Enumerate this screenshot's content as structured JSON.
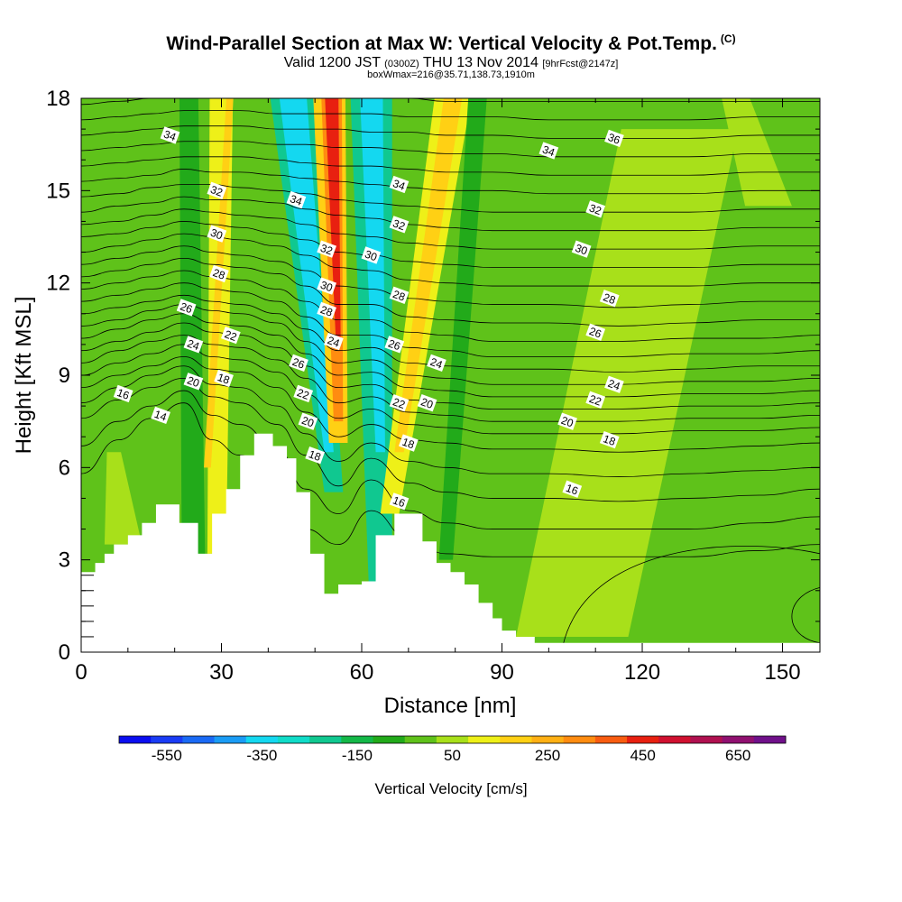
{
  "title": {
    "main": "Wind-Parallel Section at Max W: Vertical Velocity & Pot.Temp.",
    "copyright": "(C)",
    "valid_prefix": "Valid 1200 JST",
    "valid_utc": "(0300Z)",
    "valid_date": "THU 13 Nov 2014",
    "forecast": "[9hrFcst@2147z]",
    "box_info": "boxWmax=216@35.71,138.73,1910m"
  },
  "colors": {
    "terrain": "#ffffff",
    "background_field": "#5fc21a",
    "colorbar": [
      "#0a0ef0",
      "#1a3cf5",
      "#1a6af5",
      "#1a9cf5",
      "#14d8f0",
      "#10dcc8",
      "#10c890",
      "#14b848",
      "#22aa1a",
      "#5fc21a",
      "#a8e01a",
      "#eef018",
      "#ffd014",
      "#ffb014",
      "#ff8c10",
      "#f85c10",
      "#e82010",
      "#d01030",
      "#b01050",
      "#901070",
      "#70108a"
    ]
  },
  "chart_data": {
    "type": "heatmap",
    "xlabel": "Distance [nm]",
    "ylabel": "Height [Kft MSL]",
    "xlim": [
      0,
      158
    ],
    "ylim": [
      0,
      18
    ],
    "x_ticks": [
      "0",
      "30",
      "60",
      "90",
      "120",
      "150"
    ],
    "y_ticks": [
      "0",
      "3",
      "6",
      "9",
      "12",
      "15",
      "18"
    ],
    "x_tick_values": [
      0,
      30,
      60,
      90,
      120,
      150
    ],
    "y_tick_values": [
      0,
      3,
      6,
      9,
      12,
      15,
      18
    ],
    "colorbar": {
      "label": "Vertical Velocity [cm/s]",
      "tick_labels": [
        "-550",
        "-350",
        "-150",
        "50",
        "250",
        "450",
        "650"
      ],
      "tick_values": [
        -550,
        -350,
        -150,
        50,
        250,
        450,
        650
      ],
      "range": [
        -650,
        750
      ]
    },
    "bands": [
      {
        "x_top": 23,
        "x_bot": 24,
        "w_top": 4,
        "w_bot": 5,
        "color": "#22aa1a",
        "ybot": 3.2
      },
      {
        "x_top": 30,
        "x_bot": 29,
        "w_top": 5,
        "w_bot": 4,
        "color": "#eef018",
        "ybot": 3.2
      },
      {
        "x_top": 32,
        "x_bot": 27,
        "w_top": 1.5,
        "w_bot": 1.5,
        "color": "#ffd014",
        "ybot": 6
      },
      {
        "x_top": 45,
        "x_bot": 54,
        "w_top": 10,
        "w_bot": 4,
        "color": "#10c890",
        "ybot": 5.2
      },
      {
        "x_top": 45,
        "x_bot": 53,
        "w_top": 6,
        "w_bot": 2,
        "color": "#14d8f0",
        "ybot": 6.5
      },
      {
        "x_top": 53,
        "x_bot": 55,
        "w_top": 7,
        "w_bot": 4,
        "color": "#ffd014",
        "ybot": 6.8
      },
      {
        "x_top": 53.5,
        "x_bot": 55,
        "w_top": 4.5,
        "w_bot": 2,
        "color": "#ff8c10",
        "ybot": 7.5
      },
      {
        "x_top": 53.5,
        "x_bot": 55,
        "w_top": 3,
        "w_bot": 1,
        "color": "#e82010",
        "ybot": 10
      },
      {
        "x_top": 62,
        "x_bot": 64,
        "w_top": 9,
        "w_bot": 5,
        "color": "#10c890",
        "ybot": 2.2
      },
      {
        "x_top": 62,
        "x_bot": 64,
        "w_top": 5,
        "w_bot": 2,
        "color": "#14d8f0",
        "ybot": 6.5
      },
      {
        "x_top": 80,
        "x_bot": 66,
        "w_top": 8,
        "w_bot": 4,
        "color": "#eef018",
        "ybot": 4.5
      },
      {
        "x_top": 80,
        "x_bot": 68,
        "w_top": 4,
        "w_bot": 2,
        "color": "#ffd014",
        "ybot": 6.5
      },
      {
        "x_top": 85,
        "x_bot": 78,
        "w_top": 4,
        "w_bot": 3,
        "color": "#22aa1a",
        "ybot": 3
      }
    ],
    "light_regions": [
      {
        "x_top": 128,
        "x_bot": 105,
        "w_top": 25,
        "w_bot": 24,
        "ytop": 17,
        "ybot": 0.5
      },
      {
        "x_top": 140,
        "x_bot": 147,
        "w_top": 6,
        "w_bot": 10,
        "ytop": 18,
        "ybot": 14.5
      },
      {
        "x_top": 7,
        "x_bot": 9,
        "w_top": 3,
        "w_bot": 8,
        "ytop": 6.5,
        "ybot": 3.5
      }
    ],
    "terrain_height_kft": [
      [
        0,
        2.6
      ],
      [
        3,
        2.9
      ],
      [
        5,
        3.2
      ],
      [
        7,
        3.5
      ],
      [
        10,
        3.8
      ],
      [
        13,
        4.2
      ],
      [
        16,
        4.8
      ],
      [
        21,
        4.2
      ],
      [
        25,
        3.2
      ],
      [
        28,
        4.5
      ],
      [
        31,
        5.3
      ],
      [
        34,
        6.4
      ],
      [
        37,
        7.1
      ],
      [
        41,
        6.7
      ],
      [
        44,
        6.3
      ],
      [
        46,
        5.2
      ],
      [
        49,
        3.2
      ],
      [
        52,
        1.9
      ],
      [
        55,
        2.2
      ],
      [
        60,
        2.3
      ],
      [
        63,
        3.8
      ],
      [
        67,
        4.5
      ],
      [
        73,
        3.6
      ],
      [
        76,
        2.9
      ],
      [
        79,
        2.6
      ],
      [
        82,
        2.2
      ],
      [
        85,
        1.6
      ],
      [
        88,
        1.1
      ],
      [
        90,
        0.7
      ],
      [
        93,
        0.5
      ],
      [
        97,
        0.3
      ],
      [
        100,
        0.3
      ]
    ],
    "terrain_cutoff_x": 103,
    "isentropes": [
      {
        "theta": 14,
        "y": [
          5.8,
          6.9,
          7.6,
          8.1,
          6.9,
          6.4,
          5.5,
          4.0,
          3.5,
          4.6,
          3.7,
          3.2,
          3.1,
          3.1,
          3.1,
          3.1,
          3.3,
          3.5
        ]
      },
      {
        "theta": 15,
        "y": [
          6.7,
          7.5,
          8.0,
          8.5,
          7.7,
          7.4,
          6.6,
          5.3,
          4.5,
          5.6,
          4.6,
          4.2,
          4.0,
          4.0,
          4.0,
          4.0,
          4.2,
          4.4
        ]
      },
      {
        "theta": 16,
        "y": [
          7.6,
          8.2,
          8.6,
          8.9,
          8.3,
          8.1,
          7.4,
          6.4,
          5.4,
          6.3,
          5.5,
          5.2,
          5.0,
          5.0,
          4.9,
          5.0,
          5.1,
          5.3
        ]
      },
      {
        "theta": 17,
        "y": [
          8.1,
          8.6,
          9.0,
          9.3,
          8.7,
          8.6,
          8.0,
          7.1,
          6.2,
          6.8,
          6.2,
          6.0,
          5.8,
          5.8,
          5.7,
          5.8,
          5.9,
          6.0
        ]
      },
      {
        "theta": 18,
        "y": [
          8.6,
          9.0,
          9.3,
          9.6,
          9.2,
          9.1,
          8.6,
          7.8,
          7.0,
          7.4,
          6.9,
          6.8,
          6.6,
          6.6,
          6.5,
          6.6,
          6.7,
          6.8
        ]
      },
      {
        "theta": 19,
        "y": [
          9.0,
          9.4,
          9.7,
          10.0,
          9.6,
          9.5,
          9.1,
          8.4,
          7.6,
          7.9,
          7.4,
          7.3,
          7.1,
          7.1,
          7.1,
          7.2,
          7.2,
          7.3
        ]
      },
      {
        "theta": 20,
        "y": [
          9.4,
          9.8,
          10.1,
          10.3,
          10.0,
          9.9,
          9.5,
          8.9,
          8.1,
          8.3,
          7.8,
          7.7,
          7.5,
          7.5,
          7.5,
          7.6,
          7.6,
          7.7
        ]
      },
      {
        "theta": 21,
        "y": [
          9.8,
          10.1,
          10.4,
          10.7,
          10.4,
          10.3,
          9.9,
          9.3,
          8.6,
          8.7,
          8.2,
          8.1,
          7.9,
          7.9,
          7.9,
          8.0,
          8.0,
          8.1
        ]
      },
      {
        "theta": 22,
        "y": [
          10.2,
          10.5,
          10.8,
          11.0,
          10.7,
          10.6,
          10.3,
          9.7,
          9.0,
          9.1,
          8.6,
          8.5,
          8.3,
          8.3,
          8.3,
          8.4,
          8.4,
          8.5
        ]
      },
      {
        "theta": 23,
        "y": [
          10.6,
          10.8,
          11.1,
          11.3,
          11.1,
          11.0,
          10.7,
          10.1,
          9.4,
          9.5,
          9.0,
          8.9,
          8.7,
          8.7,
          8.7,
          8.8,
          8.8,
          8.9
        ]
      },
      {
        "theta": 24,
        "y": [
          11.0,
          11.2,
          11.4,
          11.6,
          11.4,
          11.3,
          11.0,
          10.5,
          9.8,
          9.9,
          9.4,
          9.3,
          9.2,
          9.2,
          9.1,
          9.2,
          9.3,
          9.3
        ]
      },
      {
        "theta": 25,
        "y": [
          11.4,
          11.6,
          11.8,
          12.0,
          11.8,
          11.7,
          11.4,
          10.9,
          10.3,
          10.3,
          9.9,
          9.8,
          9.6,
          9.6,
          9.6,
          9.7,
          9.7,
          9.8
        ]
      },
      {
        "theta": 26,
        "y": [
          11.8,
          12.0,
          12.2,
          12.4,
          12.2,
          12.1,
          11.8,
          11.4,
          10.8,
          10.8,
          10.4,
          10.3,
          10.1,
          10.1,
          10.1,
          10.2,
          10.2,
          10.3
        ]
      },
      {
        "theta": 27,
        "y": [
          12.2,
          12.4,
          12.6,
          12.8,
          12.6,
          12.5,
          12.3,
          11.9,
          11.3,
          11.3,
          10.9,
          10.8,
          10.7,
          10.7,
          10.6,
          10.7,
          10.8,
          10.8
        ]
      },
      {
        "theta": 28,
        "y": [
          12.6,
          12.8,
          13.0,
          13.2,
          13.0,
          12.9,
          12.7,
          12.4,
          11.9,
          11.8,
          11.5,
          11.4,
          11.3,
          11.3,
          11.2,
          11.3,
          11.4,
          11.4
        ]
      },
      {
        "theta": 29,
        "y": [
          13.0,
          13.2,
          13.4,
          13.6,
          13.5,
          13.4,
          13.2,
          12.9,
          12.5,
          12.4,
          12.1,
          12.0,
          11.9,
          11.9,
          11.9,
          11.9,
          12.0,
          12.0
        ]
      },
      {
        "theta": 30,
        "y": [
          13.5,
          13.6,
          13.8,
          14.0,
          13.9,
          13.8,
          13.6,
          13.4,
          13.0,
          12.9,
          12.7,
          12.6,
          12.5,
          12.5,
          12.5,
          12.5,
          12.6,
          12.6
        ]
      },
      {
        "theta": 31,
        "y": [
          13.9,
          14.0,
          14.2,
          14.4,
          14.3,
          14.2,
          14.1,
          13.9,
          13.6,
          13.5,
          13.3,
          13.2,
          13.1,
          13.1,
          13.1,
          13.1,
          13.2,
          13.2
        ]
      },
      {
        "theta": 32,
        "y": [
          14.3,
          14.5,
          14.6,
          14.8,
          14.7,
          14.7,
          14.6,
          14.4,
          14.2,
          14.1,
          13.9,
          13.8,
          13.7,
          13.7,
          13.7,
          13.7,
          13.8,
          13.8
        ]
      },
      {
        "theta": 33,
        "y": [
          14.8,
          14.9,
          15.1,
          15.2,
          15.2,
          15.1,
          15.0,
          14.9,
          14.7,
          14.6,
          14.5,
          14.4,
          14.3,
          14.3,
          14.3,
          14.3,
          14.4,
          14.4
        ]
      },
      {
        "theta": 34,
        "y": [
          15.3,
          15.4,
          15.5,
          15.7,
          15.6,
          15.6,
          15.5,
          15.4,
          15.3,
          15.2,
          15.1,
          15.0,
          15.0,
          14.9,
          14.9,
          14.9,
          15.0,
          15.0
        ]
      },
      {
        "theta": 35,
        "y": [
          15.8,
          15.9,
          16.0,
          16.1,
          16.1,
          16.1,
          16.0,
          15.9,
          15.8,
          15.8,
          15.7,
          15.6,
          15.6,
          15.5,
          15.5,
          15.5,
          15.6,
          15.6
        ]
      },
      {
        "theta": 36,
        "y": [
          16.3,
          16.4,
          16.5,
          16.6,
          16.6,
          16.6,
          16.5,
          16.5,
          16.4,
          16.4,
          16.3,
          16.2,
          16.2,
          16.1,
          16.1,
          16.1,
          16.2,
          16.2
        ]
      },
      {
        "theta": 37,
        "y": [
          16.8,
          16.9,
          17.0,
          17.1,
          17.1,
          17.1,
          17.0,
          17.0,
          17.0,
          16.9,
          16.9,
          16.8,
          16.8,
          16.7,
          16.7,
          16.7,
          16.8,
          16.8
        ]
      },
      {
        "theta": 38,
        "y": [
          17.3,
          17.4,
          17.5,
          17.6,
          17.6,
          17.6,
          17.5,
          17.5,
          17.5,
          17.5,
          17.4,
          17.4,
          17.4,
          17.3,
          17.3,
          17.3,
          17.4,
          17.4
        ]
      },
      {
        "theta": 39,
        "y": [
          17.8,
          17.9,
          18.0,
          18.1,
          18.1,
          18.1,
          18.0,
          18.0,
          18.0,
          18.0,
          18.0,
          17.9,
          17.9,
          17.9,
          17.9,
          17.9,
          17.9,
          17.9
        ]
      }
    ],
    "isentrope_x": [
      0,
      8,
      15,
      22,
      28,
      34,
      42,
      48,
      55,
      62,
      70,
      78,
      88,
      100,
      115,
      130,
      145,
      158
    ],
    "contour_labels": [
      {
        "text": "34",
        "x": 19,
        "y": 16.8
      },
      {
        "text": "32",
        "x": 29,
        "y": 15.0
      },
      {
        "text": "30",
        "x": 29,
        "y": 13.6
      },
      {
        "text": "28",
        "x": 29.5,
        "y": 12.3
      },
      {
        "text": "26",
        "x": 22.5,
        "y": 11.2
      },
      {
        "text": "24",
        "x": 24,
        "y": 10.0
      },
      {
        "text": "22",
        "x": 32,
        "y": 10.3
      },
      {
        "text": "20",
        "x": 24,
        "y": 8.8
      },
      {
        "text": "18",
        "x": 30.5,
        "y": 8.9
      },
      {
        "text": "16",
        "x": 9,
        "y": 8.4
      },
      {
        "text": "14",
        "x": 17,
        "y": 7.7
      },
      {
        "text": "34",
        "x": 46,
        "y": 14.7
      },
      {
        "text": "32",
        "x": 52.5,
        "y": 13.1
      },
      {
        "text": "30",
        "x": 52.5,
        "y": 11.9
      },
      {
        "text": "28",
        "x": 52.5,
        "y": 11.1
      },
      {
        "text": "26",
        "x": 46.5,
        "y": 9.4
      },
      {
        "text": "24",
        "x": 54,
        "y": 10.1
      },
      {
        "text": "22",
        "x": 47.5,
        "y": 8.4
      },
      {
        "text": "20",
        "x": 48.5,
        "y": 7.5
      },
      {
        "text": "18",
        "x": 50,
        "y": 6.4
      },
      {
        "text": "30",
        "x": 62,
        "y": 12.9
      },
      {
        "text": "34",
        "x": 68,
        "y": 15.2
      },
      {
        "text": "32",
        "x": 68,
        "y": 13.9
      },
      {
        "text": "28",
        "x": 68,
        "y": 11.6
      },
      {
        "text": "26",
        "x": 67,
        "y": 10.0
      },
      {
        "text": "24",
        "x": 76,
        "y": 9.4
      },
      {
        "text": "22",
        "x": 68,
        "y": 8.1
      },
      {
        "text": "20",
        "x": 74,
        "y": 8.1
      },
      {
        "text": "18",
        "x": 70,
        "y": 6.8
      },
      {
        "text": "16",
        "x": 68,
        "y": 4.9
      },
      {
        "text": "34",
        "x": 100,
        "y": 16.3
      },
      {
        "text": "36",
        "x": 114,
        "y": 16.7
      },
      {
        "text": "32",
        "x": 110,
        "y": 14.4
      },
      {
        "text": "30",
        "x": 107,
        "y": 13.1
      },
      {
        "text": "28",
        "x": 113,
        "y": 11.5
      },
      {
        "text": "26",
        "x": 110,
        "y": 10.4
      },
      {
        "text": "24",
        "x": 114,
        "y": 8.7
      },
      {
        "text": "22",
        "x": 110,
        "y": 8.2
      },
      {
        "text": "20",
        "x": 104,
        "y": 7.5
      },
      {
        "text": "18",
        "x": 113,
        "y": 6.9
      },
      {
        "text": "16",
        "x": 105,
        "y": 5.3
      }
    ]
  }
}
